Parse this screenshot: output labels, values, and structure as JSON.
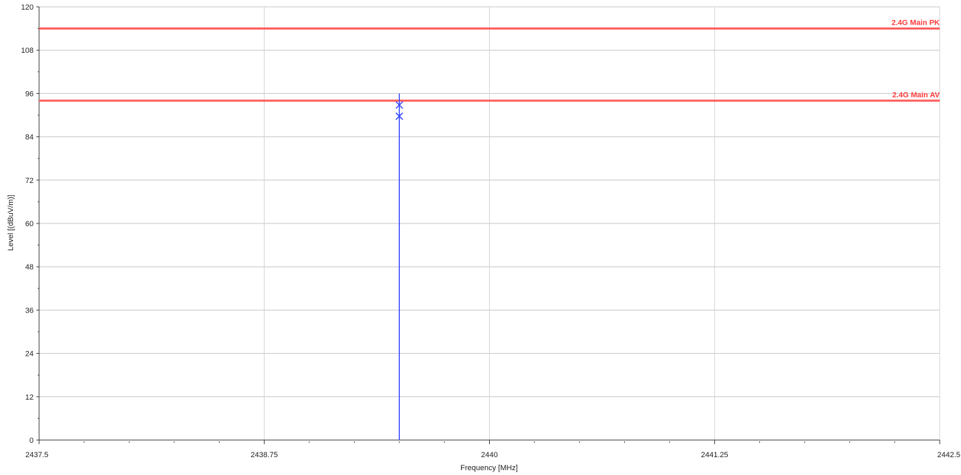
{
  "chart_data": {
    "type": "line",
    "title": "",
    "xlabel": "Frequency [MHz]",
    "ylabel": "Level [(dBuV/m)]",
    "xlim": [
      2437.5,
      2442.5
    ],
    "ylim": [
      0,
      120
    ],
    "x_ticks": [
      {
        "value": 2437.5,
        "label": "2437.5"
      },
      {
        "value": 2438.75,
        "label": "2438.75"
      },
      {
        "value": 2440,
        "label": "2440"
      },
      {
        "value": 2441.25,
        "label": "2441.25"
      },
      {
        "value": 2442.5,
        "label": "2442.5"
      }
    ],
    "y_ticks": [
      {
        "value": 0,
        "label": "0"
      },
      {
        "value": 12,
        "label": "12"
      },
      {
        "value": 24,
        "label": "24"
      },
      {
        "value": 36,
        "label": "36"
      },
      {
        "value": 48,
        "label": "48"
      },
      {
        "value": 60,
        "label": "60"
      },
      {
        "value": 72,
        "label": "72"
      },
      {
        "value": 84,
        "label": "84"
      },
      {
        "value": 96,
        "label": "96"
      },
      {
        "value": 108,
        "label": "108"
      },
      {
        "value": 120,
        "label": "120"
      }
    ],
    "grid": true,
    "limit_lines": [
      {
        "label": "2.4G Main PK",
        "value": 114,
        "color": "#ff5a5a"
      },
      {
        "label": "2.4G Main AV",
        "value": 94,
        "color": "#ff5a5a"
      }
    ],
    "series": [
      {
        "color": "#3344ff",
        "x": [
          2439.5,
          2439.5
        ],
        "y": [
          0,
          96
        ]
      }
    ],
    "markers": [
      {
        "x": 2439.5,
        "y": 92.8,
        "shape": "x",
        "color": "#3344ff"
      },
      {
        "x": 2439.5,
        "y": 89.7,
        "shape": "x",
        "color": "#3344ff"
      }
    ]
  }
}
